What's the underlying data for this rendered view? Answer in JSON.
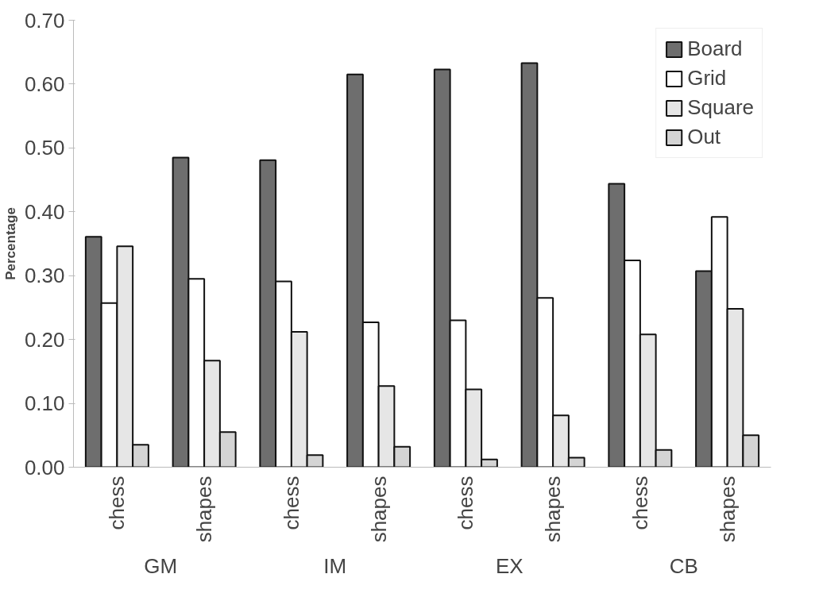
{
  "chart_data": {
    "type": "bar",
    "ylabel": "Percentage",
    "categories": [
      "chess",
      "shapes",
      "chess",
      "shapes",
      "chess",
      "shapes",
      "chess",
      "shapes"
    ],
    "annotations": [
      "GM",
      "IM",
      "EX",
      "CB"
    ],
    "series": [
      {
        "name": "Board",
        "color": "#6e6e6e",
        "values": [
          0.361,
          0.485,
          0.481,
          0.615,
          0.623,
          0.633,
          0.444,
          0.307
        ]
      },
      {
        "name": "Grid",
        "color": "#ffffff",
        "values": [
          0.257,
          0.295,
          0.291,
          0.227,
          0.23,
          0.265,
          0.324,
          0.392
        ]
      },
      {
        "name": "Square",
        "color": "#e6e6e6",
        "values": [
          0.346,
          0.167,
          0.212,
          0.127,
          0.122,
          0.081,
          0.208,
          0.248
        ]
      },
      {
        "name": "Out",
        "color": "#d4d4d4",
        "values": [
          0.035,
          0.055,
          0.019,
          0.032,
          0.012,
          0.015,
          0.027,
          0.05
        ]
      }
    ],
    "ylim": [
      0,
      0.7
    ],
    "yticks": [
      {
        "value": 0,
        "label": "0.00"
      },
      {
        "value": 0.1,
        "label": "0.10"
      },
      {
        "value": 0.2,
        "label": "0.20"
      },
      {
        "value": 0.3,
        "label": "0.30"
      },
      {
        "value": 0.4,
        "label": "0.40"
      },
      {
        "value": 0.5,
        "label": "0.50"
      },
      {
        "value": 0.6,
        "label": "0.60"
      },
      {
        "value": 0.7,
        "label": "0.70"
      }
    ],
    "grid": false,
    "legend": "top right"
  }
}
